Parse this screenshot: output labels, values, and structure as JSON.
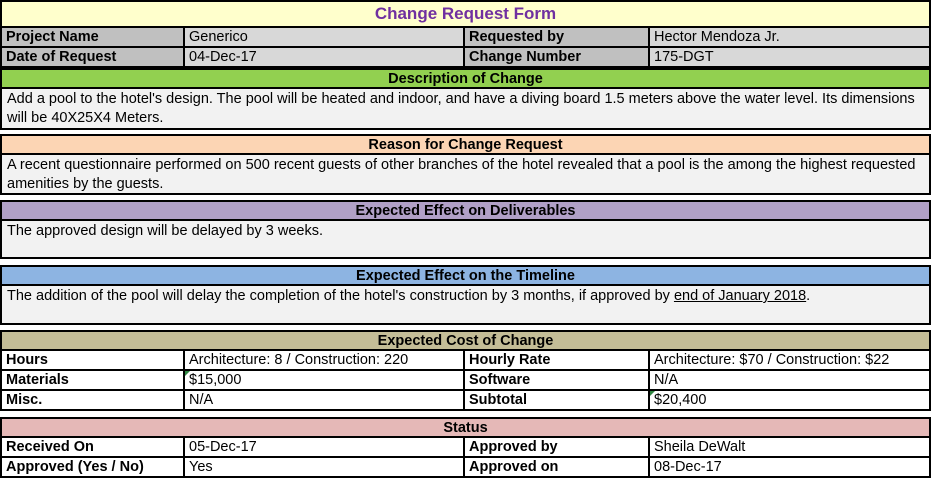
{
  "title": "Change Request Form",
  "colors": {
    "title_bg": "#FFFFCC",
    "title_text": "#7030A0",
    "label_gray": "#C0C0C0",
    "value_gray": "#D8D8D8",
    "body_bg": "#F2F2F2",
    "description_header": "#92D050",
    "reason_header": "#FCD5B4",
    "deliverables_header": "#B1A0C7",
    "timeline_header": "#8DB4E2",
    "cost_header": "#C4BD97",
    "status_header": "#E5B8B7",
    "border": "#000000",
    "flag_green": "#2E8540"
  },
  "info_rows": [
    [
      "Project Name",
      "Generico",
      "Requested by",
      "Hector Mendoza Jr."
    ],
    [
      "Date of Request",
      "04-Dec-17",
      "Change Number",
      "175-DGT"
    ]
  ],
  "sections": {
    "description": {
      "header": "Description of Change",
      "body": "Add a pool to the hotel's design. The pool will be heated and indoor, and have a diving board 1.5 meters above the water level. Its dimensions will be 40X25X4 Meters."
    },
    "reason": {
      "header": "Reason for Change Request",
      "body": "A recent questionnaire performed on 500 recent guests of other branches of the hotel revealed that a pool is the among the highest requested amenities by the guests."
    },
    "deliverables": {
      "header": "Expected Effect on Deliverables",
      "body": "The approved design will be delayed by 3 weeks."
    },
    "timeline": {
      "header": "Expected Effect on the Timeline",
      "body_prefix": "The addition of the pool will delay the completion of the hotel's construction by 3 months, if approved by ",
      "body_underlined": "end of January 2018",
      "body_suffix": "."
    }
  },
  "cost": {
    "header": "Expected Cost of Change",
    "rows": [
      [
        "Hours",
        "Architecture: 8 / Construction: 220",
        "Hourly Rate",
        "Architecture: $70 / Construction: $22"
      ],
      [
        "Materials",
        "$15,000",
        "Software",
        "N/A"
      ],
      [
        "Misc.",
        "N/A",
        "Subtotal",
        "$20,400"
      ]
    ]
  },
  "status": {
    "header": "Status",
    "rows": [
      [
        "Received On",
        "05-Dec-17",
        "Approved by",
        "Sheila DeWalt"
      ],
      [
        "Approved (Yes / No)",
        "Yes",
        "Approved on",
        "08-Dec-17"
      ]
    ]
  }
}
